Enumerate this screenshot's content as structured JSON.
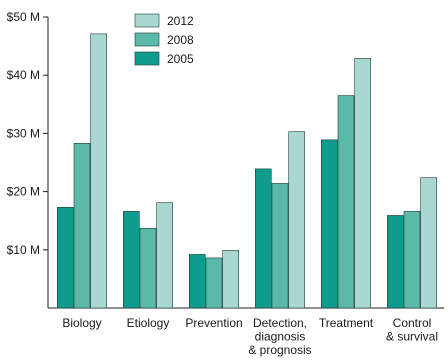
{
  "chart_data": {
    "type": "bar",
    "categories": [
      [
        "Biology"
      ],
      [
        "Etiology"
      ],
      [
        "Prevention"
      ],
      [
        "Detection,",
        "diagnosis",
        "& prognosis"
      ],
      [
        "Treatment"
      ],
      [
        "Control",
        "& survival"
      ]
    ],
    "series": [
      {
        "name": "2005",
        "color": "#0f9b8e",
        "values": [
          17.3,
          16.6,
          9.2,
          23.9,
          28.9,
          15.9
        ]
      },
      {
        "name": "2008",
        "color": "#5ab9a8",
        "values": [
          28.3,
          13.7,
          8.6,
          21.4,
          36.5,
          16.6
        ]
      },
      {
        "name": "2012",
        "color": "#a8d8d1",
        "values": [
          47.1,
          18.1,
          9.9,
          30.3,
          42.9,
          22.4
        ]
      }
    ],
    "legend_order": [
      "2012",
      "2008",
      "2005"
    ],
    "ylim": [
      0,
      50
    ],
    "yticks": [
      10,
      20,
      30,
      40,
      50
    ],
    "ytick_labels": [
      "$10 M",
      "$20 M",
      "$30 M",
      "$40 M",
      "$50 M"
    ],
    "legend_position": "top-left",
    "grid": false
  }
}
